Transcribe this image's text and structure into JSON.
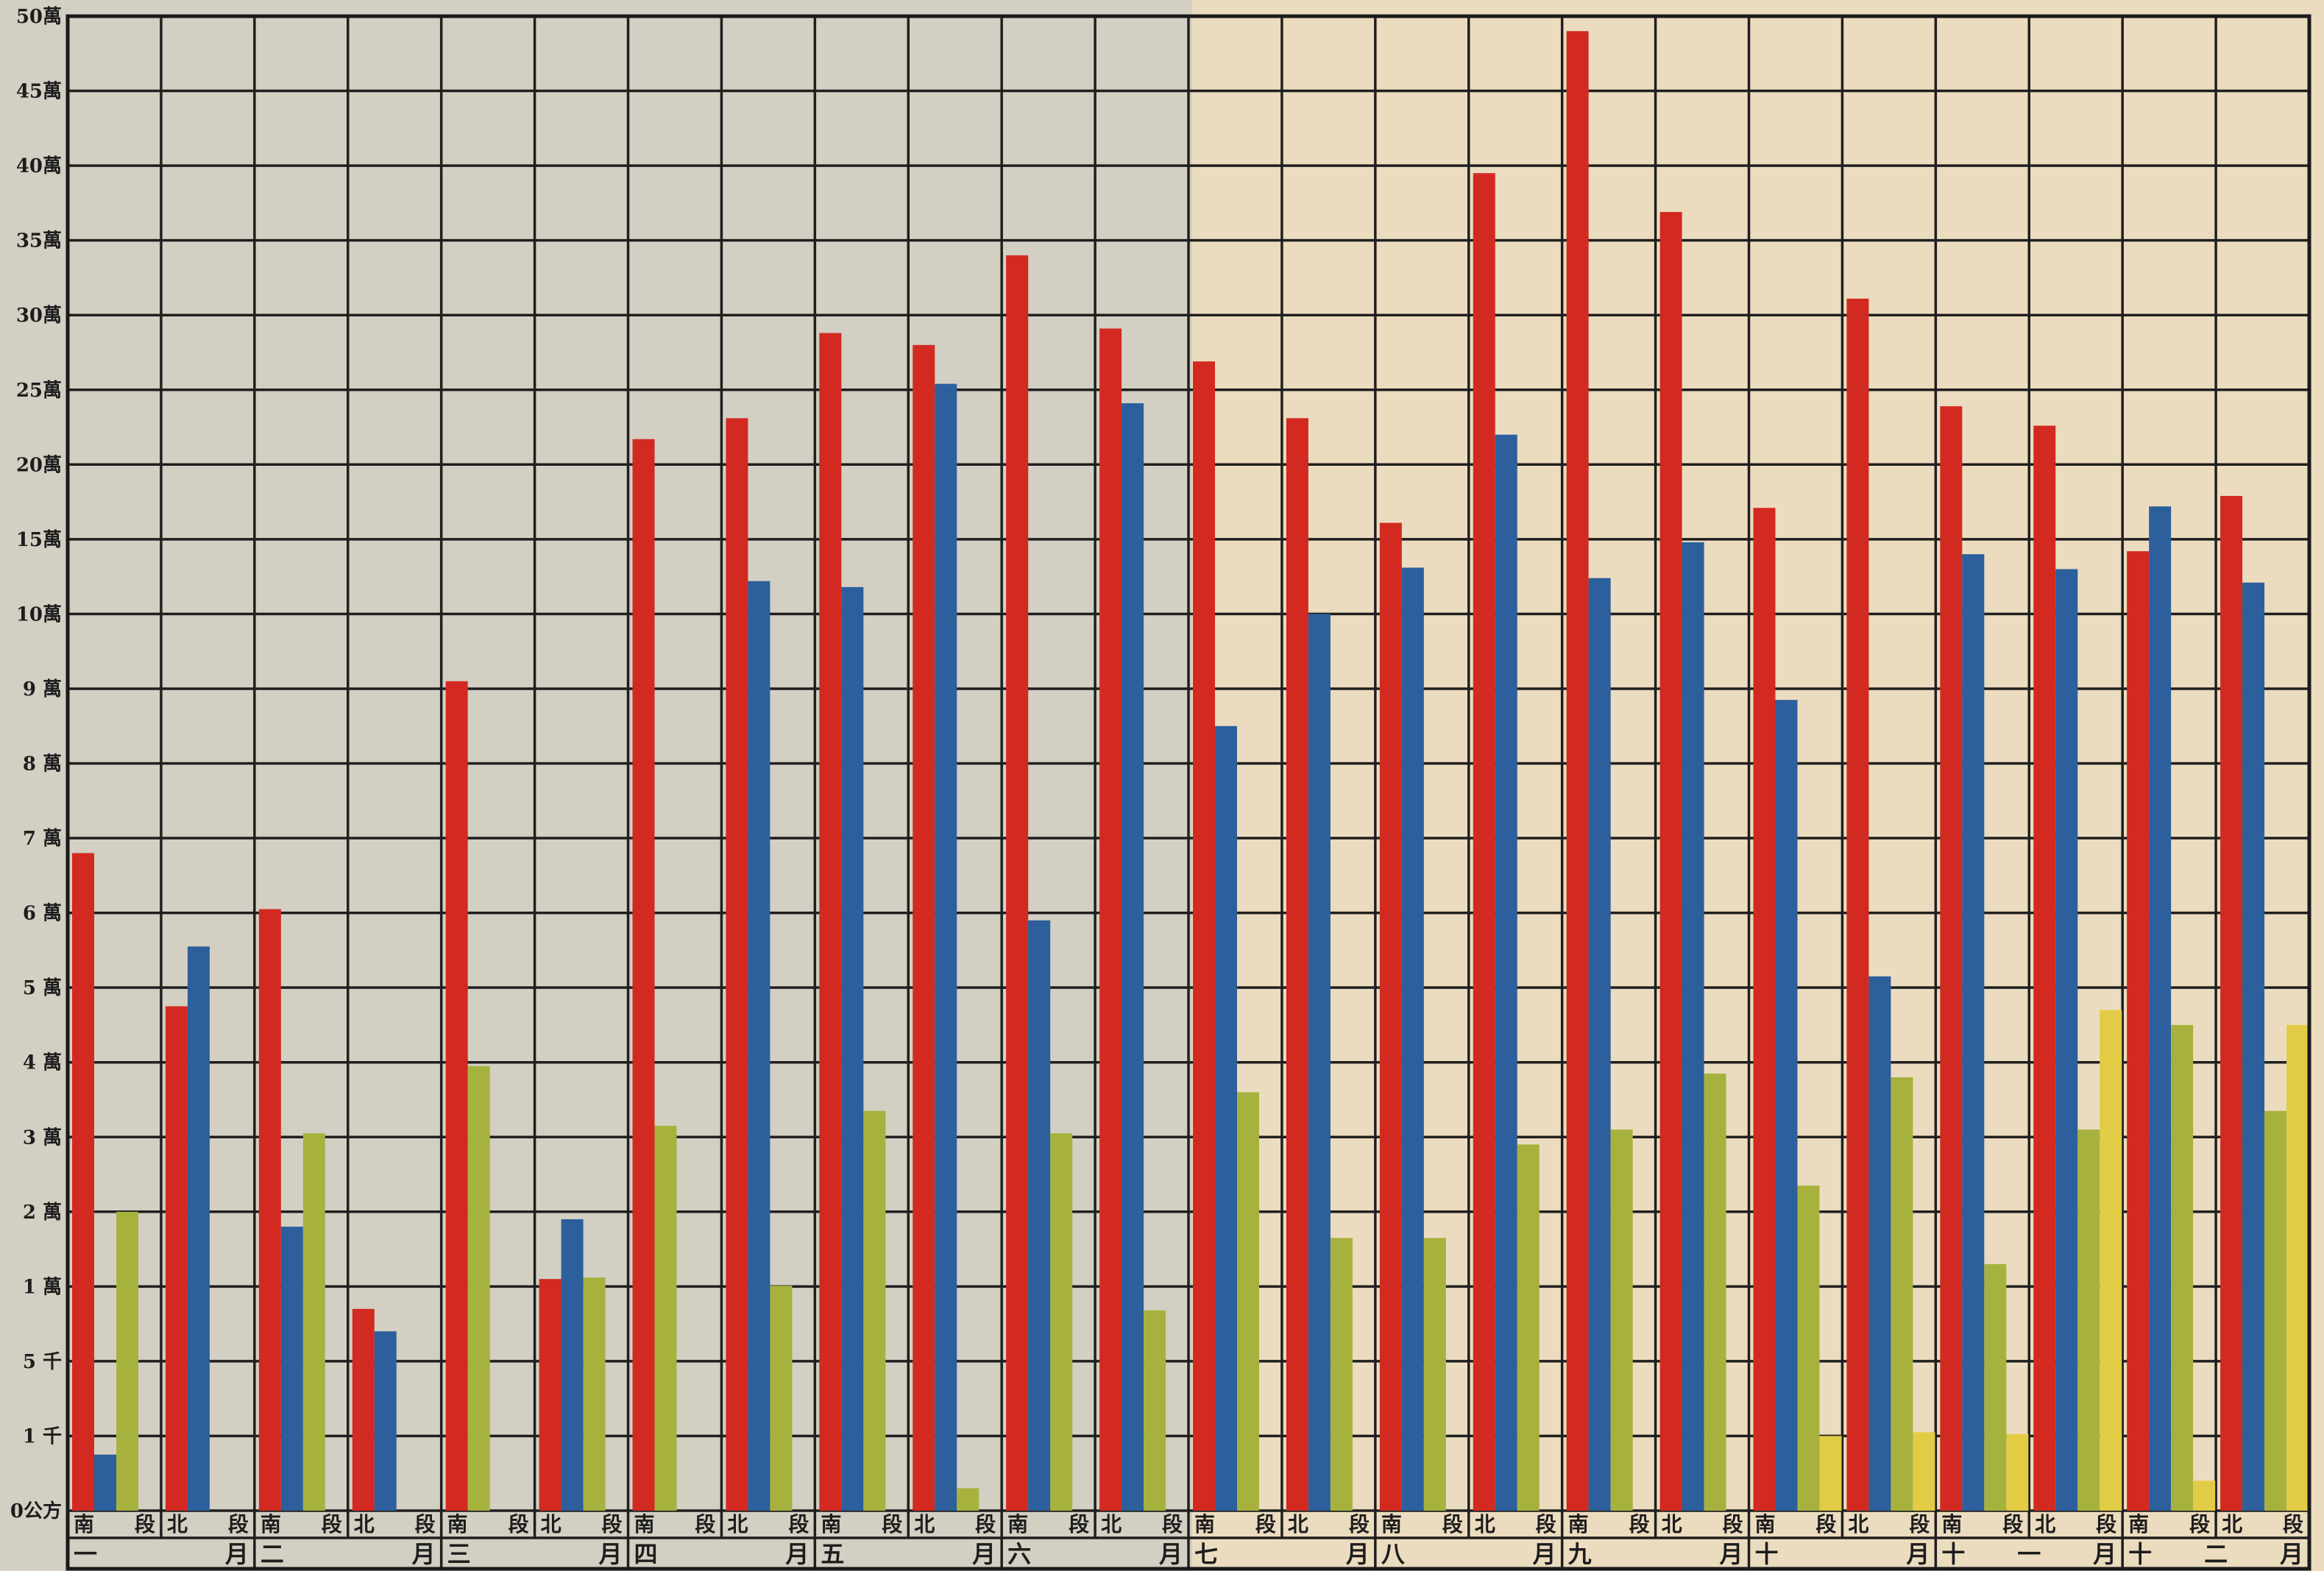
{
  "colors": {
    "south": "#d22a21",
    "north": "#2c5f9c",
    "green": "#a7b23e",
    "yellow": "#e3cc45"
  },
  "segment_labels": {
    "south": "南",
    "north": "北",
    "duan": "段"
  },
  "month_last_char": "月",
  "chart_data": {
    "type": "bar",
    "title": "",
    "xlabel": "",
    "ylabel": "",
    "y_ticks": [
      "0公方",
      "1 千",
      "5 千",
      "1 萬",
      "2 萬",
      "3 萬",
      "4 萬",
      "5 萬",
      "6 萬",
      "7 萬",
      "8 萬",
      "9 萬",
      "10萬",
      "15萬",
      "20萬",
      "25萬",
      "30萬",
      "35萬",
      "40萬",
      "45萬",
      "50萬"
    ],
    "y_tick_values": [
      0,
      1000,
      5000,
      10000,
      20000,
      30000,
      40000,
      50000,
      60000,
      70000,
      80000,
      90000,
      100000,
      150000,
      200000,
      250000,
      300000,
      350000,
      400000,
      450000,
      500000
    ],
    "ylim": [
      0,
      500000
    ],
    "grid": true,
    "months": [
      {
        "label": [
          "一",
          "月"
        ],
        "groups": [
          {
            "segment": "南",
            "bars": [
              {
                "series": "red",
                "value": 68000
              },
              {
                "series": "blue",
                "value": 750
              },
              {
                "series": "green",
                "value": 20000
              }
            ]
          },
          {
            "segment": "北",
            "bars": [
              {
                "series": "red",
                "value": 47500
              },
              {
                "series": "blue",
                "value": 55500
              }
            ]
          }
        ]
      },
      {
        "label": [
          "二",
          "月"
        ],
        "groups": [
          {
            "segment": "南",
            "bars": [
              {
                "series": "red",
                "value": 60500
              },
              {
                "series": "blue",
                "value": 18000
              },
              {
                "series": "green",
                "value": 30500
              }
            ]
          },
          {
            "segment": "北",
            "bars": [
              {
                "series": "red",
                "value": 8500
              },
              {
                "series": "blue",
                "value": 7000
              }
            ]
          }
        ]
      },
      {
        "label": [
          "三",
          "月"
        ],
        "groups": [
          {
            "segment": "南",
            "bars": [
              {
                "series": "red",
                "value": 91000
              },
              {
                "series": "green",
                "value": 39500
              }
            ]
          },
          {
            "segment": "北",
            "bars": [
              {
                "series": "red",
                "value": 11000
              },
              {
                "series": "blue",
                "value": 19000
              },
              {
                "series": "green",
                "value": 11200
              }
            ]
          }
        ]
      },
      {
        "label": [
          "四",
          "月"
        ],
        "groups": [
          {
            "segment": "南",
            "bars": [
              {
                "series": "red",
                "value": 217000
              },
              {
                "series": "green",
                "value": 31500
              }
            ]
          },
          {
            "segment": "北",
            "bars": [
              {
                "series": "red",
                "value": 231000
              },
              {
                "series": "blue",
                "value": 122000
              },
              {
                "series": "green",
                "value": 10100
              }
            ]
          }
        ]
      },
      {
        "label": [
          "五",
          "月"
        ],
        "groups": [
          {
            "segment": "南",
            "bars": [
              {
                "series": "red",
                "value": 288000
              },
              {
                "series": "blue",
                "value": 118000
              },
              {
                "series": "green",
                "value": 33500
              }
            ]
          },
          {
            "segment": "北",
            "bars": [
              {
                "series": "red",
                "value": 280000
              },
              {
                "series": "blue",
                "value": 254000
              },
              {
                "series": "green",
                "value": 300
              }
            ]
          }
        ]
      },
      {
        "label": [
          "六",
          "月"
        ],
        "groups": [
          {
            "segment": "南",
            "bars": [
              {
                "series": "red",
                "value": 340000
              },
              {
                "series": "blue",
                "value": 59000
              },
              {
                "series": "green",
                "value": 30500
              }
            ]
          },
          {
            "segment": "北",
            "bars": [
              {
                "series": "red",
                "value": 291000
              },
              {
                "series": "blue",
                "value": 241000
              },
              {
                "series": "green",
                "value": 8400
              }
            ]
          }
        ]
      },
      {
        "label": [
          "七",
          "月"
        ],
        "groups": [
          {
            "segment": "南",
            "bars": [
              {
                "series": "red",
                "value": 269000
              },
              {
                "series": "blue",
                "value": 85000
              },
              {
                "series": "green",
                "value": 36000
              }
            ]
          },
          {
            "segment": "北",
            "bars": [
              {
                "series": "red",
                "value": 231000
              },
              {
                "series": "blue",
                "value": 100000
              },
              {
                "series": "green",
                "value": 16500
              }
            ]
          }
        ]
      },
      {
        "label": [
          "八",
          "月"
        ],
        "groups": [
          {
            "segment": "南",
            "bars": [
              {
                "series": "red",
                "value": 161000
              },
              {
                "series": "blue",
                "value": 131000
              },
              {
                "series": "green",
                "value": 16500
              }
            ]
          },
          {
            "segment": "北",
            "bars": [
              {
                "series": "red",
                "value": 395000
              },
              {
                "series": "blue",
                "value": 220000
              },
              {
                "series": "green",
                "value": 29000
              }
            ]
          }
        ]
      },
      {
        "label": [
          "九",
          "月"
        ],
        "groups": [
          {
            "segment": "南",
            "bars": [
              {
                "series": "red",
                "value": 490000
              },
              {
                "series": "blue",
                "value": 124000
              },
              {
                "series": "green",
                "value": 31000
              }
            ]
          },
          {
            "segment": "北",
            "bars": [
              {
                "series": "red",
                "value": 369000
              },
              {
                "series": "blue",
                "value": 148000
              },
              {
                "series": "green",
                "value": 38500
              }
            ]
          }
        ]
      },
      {
        "label": [
          "十",
          "月"
        ],
        "groups": [
          {
            "segment": "南",
            "bars": [
              {
                "series": "red",
                "value": 171000
              },
              {
                "series": "blue",
                "value": 88500
              },
              {
                "series": "green",
                "value": 23500
              },
              {
                "series": "yellow",
                "value": 1000
              }
            ]
          },
          {
            "segment": "北",
            "bars": [
              {
                "series": "red",
                "value": 311000
              },
              {
                "series": "blue",
                "value": 51500
              },
              {
                "series": "green",
                "value": 38000
              },
              {
                "series": "yellow",
                "value": 1200
              }
            ]
          }
        ]
      },
      {
        "label": [
          "十",
          "一",
          "月"
        ],
        "groups": [
          {
            "segment": "南",
            "bars": [
              {
                "series": "red",
                "value": 239000
              },
              {
                "series": "blue",
                "value": 140000
              },
              {
                "series": "green",
                "value": 13000
              },
              {
                "series": "yellow",
                "value": 1100
              }
            ]
          },
          {
            "segment": "北",
            "bars": [
              {
                "series": "red",
                "value": 226000
              },
              {
                "series": "blue",
                "value": 130000
              },
              {
                "series": "green",
                "value": 31000
              },
              {
                "series": "yellow",
                "value": 47000
              }
            ]
          }
        ]
      },
      {
        "label": [
          "十",
          "二",
          "月"
        ],
        "groups": [
          {
            "segment": "南",
            "bars": [
              {
                "series": "red",
                "value": 142000
              },
              {
                "series": "blue",
                "value": 172000
              },
              {
                "series": "green",
                "value": 45000
              },
              {
                "series": "yellow",
                "value": 400
              }
            ]
          },
          {
            "segment": "北",
            "bars": [
              {
                "series": "red",
                "value": 179000
              },
              {
                "series": "blue",
                "value": 121000
              },
              {
                "series": "green",
                "value": 33500
              },
              {
                "series": "yellow",
                "value": 45000
              }
            ]
          }
        ]
      }
    ]
  }
}
